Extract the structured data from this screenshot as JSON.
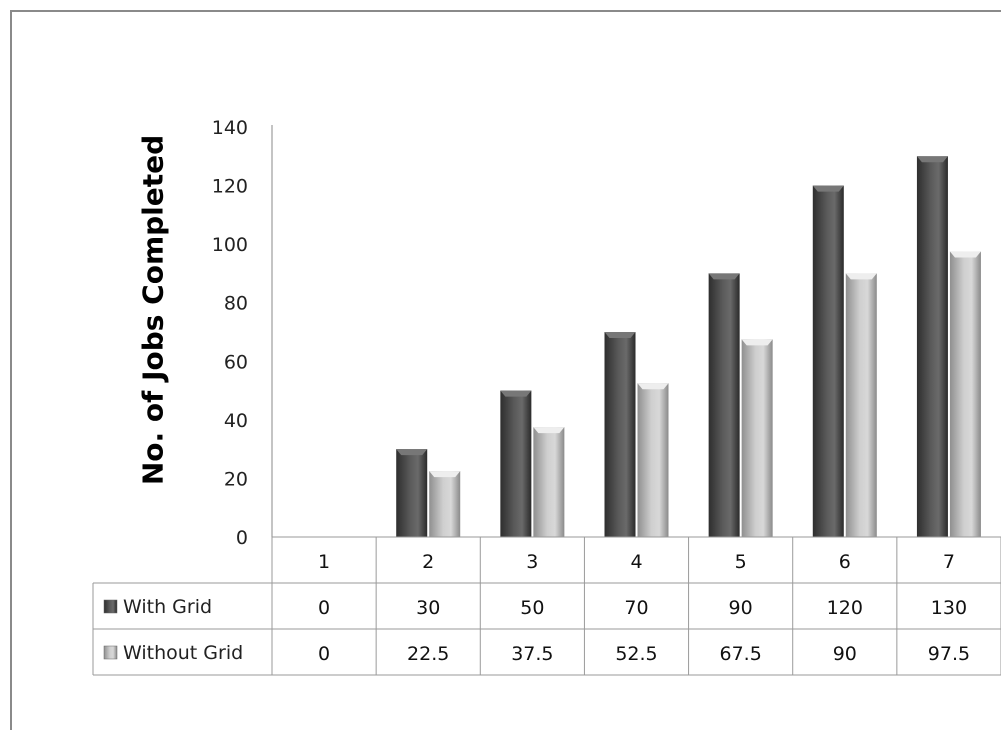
{
  "chart_data": {
    "type": "bar",
    "ylabel": "No. of Jobs Completed",
    "xlabel": "",
    "title": "",
    "categories": [
      "1",
      "2",
      "3",
      "4",
      "5",
      "6",
      "7"
    ],
    "ylim": [
      0,
      140
    ],
    "yticks": [
      "0",
      "20",
      "40",
      "60",
      "80",
      "100",
      "120",
      "140"
    ],
    "series": [
      {
        "name": "With Grid",
        "values": [
          0,
          30,
          50,
          70,
          90,
          120,
          130
        ],
        "labels": [
          "0",
          "30",
          "50",
          "70",
          "90",
          "120",
          "130"
        ],
        "color": "#4a4a4a"
      },
      {
        "name": "Without Grid",
        "values": [
          0,
          22.5,
          37.5,
          52.5,
          67.5,
          90,
          97.5
        ],
        "labels": [
          "0",
          "22.5",
          "37.5",
          "52.5",
          "67.5",
          "90",
          "97.5"
        ],
        "color": "#b8b8b8"
      }
    ],
    "grid": false,
    "legend": "data-table"
  }
}
